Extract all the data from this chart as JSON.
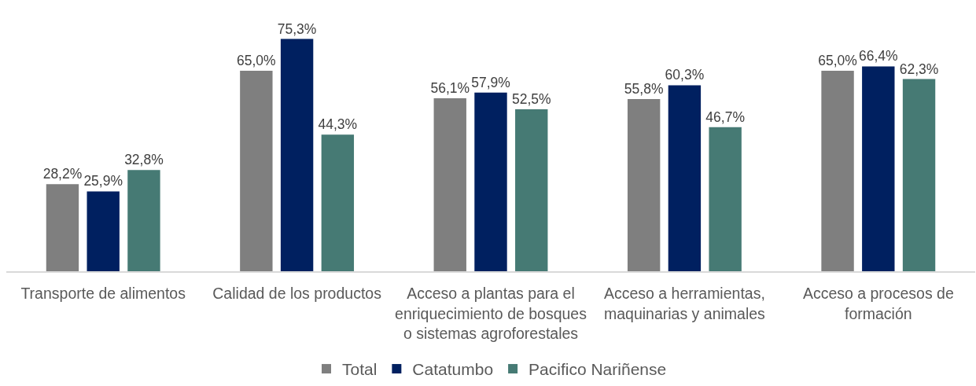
{
  "chart_data": {
    "type": "bar",
    "categories": [
      "Transporte de alimentos",
      "Calidad de los productos",
      "Acceso a plantas para el enriquecimiento de bosques o sistemas agroforestales",
      "Acceso a herramientas, maquinarias y animales",
      "Acceso a procesos de formación"
    ],
    "series": [
      {
        "name": "Total",
        "color": "#7f7f7f",
        "values": [
          28.2,
          65.0,
          56.1,
          55.8,
          65.0
        ],
        "value_labels": [
          "28,2%",
          "65,0%",
          "56,1%",
          "55,8%",
          "65,0%"
        ]
      },
      {
        "name": "Catatumbo",
        "color": "#002060",
        "values": [
          25.9,
          75.3,
          57.9,
          60.3,
          66.4
        ],
        "value_labels": [
          "25,9%",
          "75,3%",
          "57,9%",
          "60,3%",
          "66,4%"
        ]
      },
      {
        "name": "Pacifico Nariñense",
        "color": "#467a74",
        "values": [
          32.8,
          44.3,
          52.5,
          46.7,
          62.3
        ],
        "value_labels": [
          "32,8%",
          "44,3%",
          "52,5%",
          "46,7%",
          "62,3%"
        ]
      }
    ],
    "tick_labels": "x",
    "legend": "bottom"
  }
}
